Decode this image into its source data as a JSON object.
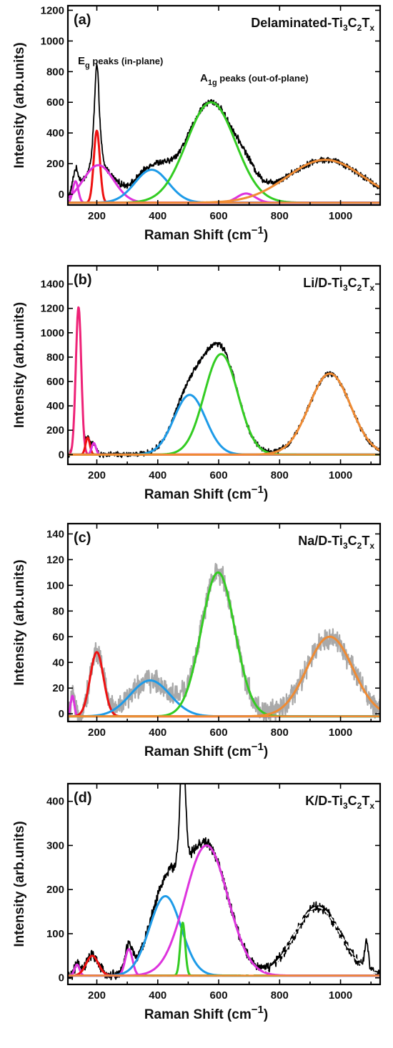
{
  "colors": {
    "raw": "#000000",
    "raw_grey": "#a9a9a9",
    "red": "#ee1111",
    "magenta": "#dd33dd",
    "pink": "#ee2277",
    "blue": "#1e9be8",
    "green": "#33cc22",
    "orange": "#f08b33",
    "white_dash": "#ffffff"
  },
  "chart_data": [
    {
      "type": "line",
      "panel": "(a)",
      "sample_name": {
        "base": "Delaminated-Ti",
        "s1": "3",
        "mid": "C",
        "s2": "2",
        "end": "T",
        "s3": "x"
      },
      "xlabel": "Raman Shift (cm−1)",
      "xlabel_main": "Raman Shift (cm",
      "xlabel_sup": "−1",
      "xlabel_close": ")",
      "ylabel": "Intensity (arb.units)",
      "xlim": [
        105,
        1130
      ],
      "ylim": [
        -70,
        1230
      ],
      "xticks": [
        200,
        400,
        600,
        800,
        1000
      ],
      "yticks": [
        0,
        200,
        400,
        600,
        800,
        1000,
        1200
      ],
      "annotations": [
        {
          "main": "E",
          "sub": "g",
          "rest": " peaks (in-plane)"
        },
        {
          "main": "A",
          "sub": "1g",
          "rest": " peaks (out-of-plane)"
        }
      ],
      "baseline": -55,
      "noise": 16,
      "raw_color": "raw",
      "components": [
        {
          "color": "magenta",
          "center": 130,
          "amplitude": 140,
          "width": 9
        },
        {
          "color": "red",
          "center": 200,
          "amplitude": 470,
          "width": 10
        },
        {
          "color": "magenta",
          "center": 205,
          "amplitude": 245,
          "width": 50
        },
        {
          "color": "blue",
          "center": 380,
          "amplitude": 215,
          "width": 55
        },
        {
          "color": "green",
          "center": 575,
          "amplitude": 655,
          "width": 80
        },
        {
          "color": "magenta",
          "center": 690,
          "amplitude": 60,
          "width": 30
        },
        {
          "color": "orange",
          "center": 950,
          "amplitude": 280,
          "width": 125
        }
      ],
      "extra_raw": [
        {
          "center": 200,
          "amplitude": 180,
          "width": 5
        }
      ]
    },
    {
      "type": "line",
      "panel": "(b)",
      "sample_name": {
        "base": "Li/D-Ti",
        "s1": "3",
        "mid": "C",
        "s2": "2",
        "end": "T",
        "s3": "x"
      },
      "xlabel": "Raman Shift (cm−1)",
      "xlabel_main": "Raman Shift (cm",
      "xlabel_sup": "−1",
      "xlabel_close": ")",
      "ylabel": "Intensity (arb.units)",
      "xlim": [
        105,
        1130
      ],
      "ylim": [
        -80,
        1550
      ],
      "xticks": [
        200,
        400,
        600,
        800,
        1000
      ],
      "yticks": [
        0,
        200,
        400,
        600,
        800,
        1000,
        1200,
        1400
      ],
      "annotations": [],
      "baseline": 0,
      "noise": 18,
      "raw_color": "raw",
      "components": [
        {
          "color": "pink",
          "center": 140,
          "amplitude": 1210,
          "width": 9
        },
        {
          "color": "red",
          "center": 170,
          "amplitude": 140,
          "width": 7
        },
        {
          "color": "magenta",
          "center": 190,
          "amplitude": 95,
          "width": 7
        },
        {
          "color": "blue",
          "center": 505,
          "amplitude": 490,
          "width": 52
        },
        {
          "color": "green",
          "center": 608,
          "amplitude": 825,
          "width": 55
        },
        {
          "color": "orange",
          "center": 965,
          "amplitude": 665,
          "width": 68
        }
      ],
      "extra_raw": []
    },
    {
      "type": "line",
      "panel": "(c)",
      "sample_name": {
        "base": "Na/D-Ti",
        "s1": "3",
        "mid": "C",
        "s2": "2",
        "end": "T",
        "s3": "x"
      },
      "xlabel": "Raman Shift (cm−1)",
      "xlabel_main": "Raman Shift (cm",
      "xlabel_sup": "−1",
      "xlabel_close": ")",
      "ylabel": "Intensity (arb.units)",
      "xlim": [
        105,
        1130
      ],
      "ylim": [
        -6,
        148
      ],
      "xticks": [
        200,
        400,
        600,
        800,
        1000
      ],
      "yticks": [
        0,
        20,
        40,
        60,
        80,
        100,
        120,
        140
      ],
      "annotations": [],
      "baseline": -2,
      "noise": 7,
      "raw_color": "raw_grey",
      "components": [
        {
          "color": "magenta",
          "center": 120,
          "amplitude": 16,
          "width": 6
        },
        {
          "color": "red",
          "center": 200,
          "amplitude": 50,
          "width": 22
        },
        {
          "color": "blue",
          "center": 375,
          "amplitude": 28,
          "width": 65
        },
        {
          "color": "green",
          "center": 598,
          "amplitude": 112,
          "width": 55
        },
        {
          "color": "orange",
          "center": 965,
          "amplitude": 62,
          "width": 75
        }
      ],
      "extra_raw": []
    },
    {
      "type": "line",
      "panel": "(d)",
      "sample_name": {
        "base": "K/D-Ti",
        "s1": "3",
        "mid": "C",
        "s2": "2",
        "end": "T",
        "s3": "x"
      },
      "xlabel": "Raman Shift (cm−1)",
      "xlabel_main": "Raman Shift (cm",
      "xlabel_sup": "−1",
      "xlabel_close": ")",
      "ylabel": "Intensity (arb.units)",
      "xlim": [
        105,
        1130
      ],
      "ylim": [
        -15,
        440
      ],
      "xticks": [
        200,
        400,
        600,
        800,
        1000
      ],
      "yticks": [
        0,
        100,
        200,
        300,
        400
      ],
      "annotations": [],
      "baseline": 5,
      "noise": 9,
      "raw_color": "raw",
      "components": [
        {
          "color": "magenta",
          "center": 135,
          "amplitude": 25,
          "width": 8
        },
        {
          "color": "red",
          "center": 185,
          "amplitude": 45,
          "width": 20
        },
        {
          "color": "magenta",
          "center": 305,
          "amplitude": 60,
          "width": 12
        },
        {
          "color": "blue",
          "center": 425,
          "amplitude": 180,
          "width": 52
        },
        {
          "color": "green",
          "center": 482,
          "amplitude": 120,
          "width": 8
        },
        {
          "color": "magenta",
          "center": 560,
          "amplitude": 295,
          "width": 70
        },
        {
          "color": "white_dash",
          "center": 925,
          "amplitude": 155,
          "width": 75
        }
      ],
      "extra_raw": [
        {
          "center": 482,
          "amplitude": 150,
          "width": 9
        },
        {
          "center": 1085,
          "amplitude": 60,
          "width": 6
        }
      ]
    }
  ]
}
